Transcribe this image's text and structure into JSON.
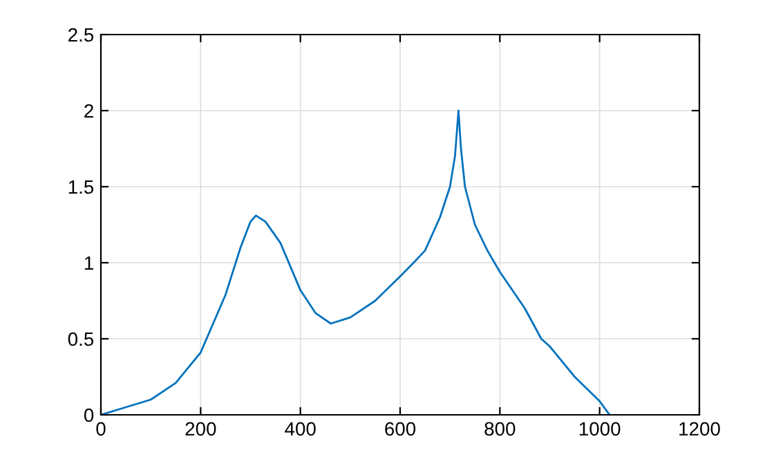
{
  "chart_data": {
    "type": "line",
    "x": [
      0,
      50,
      100,
      150,
      200,
      250,
      280,
      300,
      311,
      330,
      360,
      400,
      430,
      461,
      500,
      550,
      600,
      627,
      650,
      680,
      700,
      710,
      717,
      722,
      730,
      750,
      775,
      800,
      850,
      883,
      900,
      950,
      1000,
      1020
    ],
    "series": [
      {
        "color": "#0072bd",
        "values": [
          0,
          0.05,
          0.1,
          0.21,
          0.41,
          0.79,
          1.1,
          1.27,
          1.31,
          1.27,
          1.13,
          0.82,
          0.67,
          0.6,
          0.64,
          0.75,
          0.91,
          1.0,
          1.08,
          1.3,
          1.5,
          1.7,
          2.0,
          1.75,
          1.5,
          1.25,
          1.08,
          0.94,
          0.7,
          0.5,
          0.45,
          0.25,
          0.09,
          0
        ]
      }
    ],
    "xlim": [
      0,
      1200
    ],
    "ylim": [
      0,
      2.5
    ],
    "xticks": [
      0,
      200,
      400,
      600,
      800,
      1000,
      1200
    ],
    "yticks": [
      0,
      0.5,
      1,
      1.5,
      2,
      2.5
    ],
    "grid": true,
    "legend": false
  }
}
